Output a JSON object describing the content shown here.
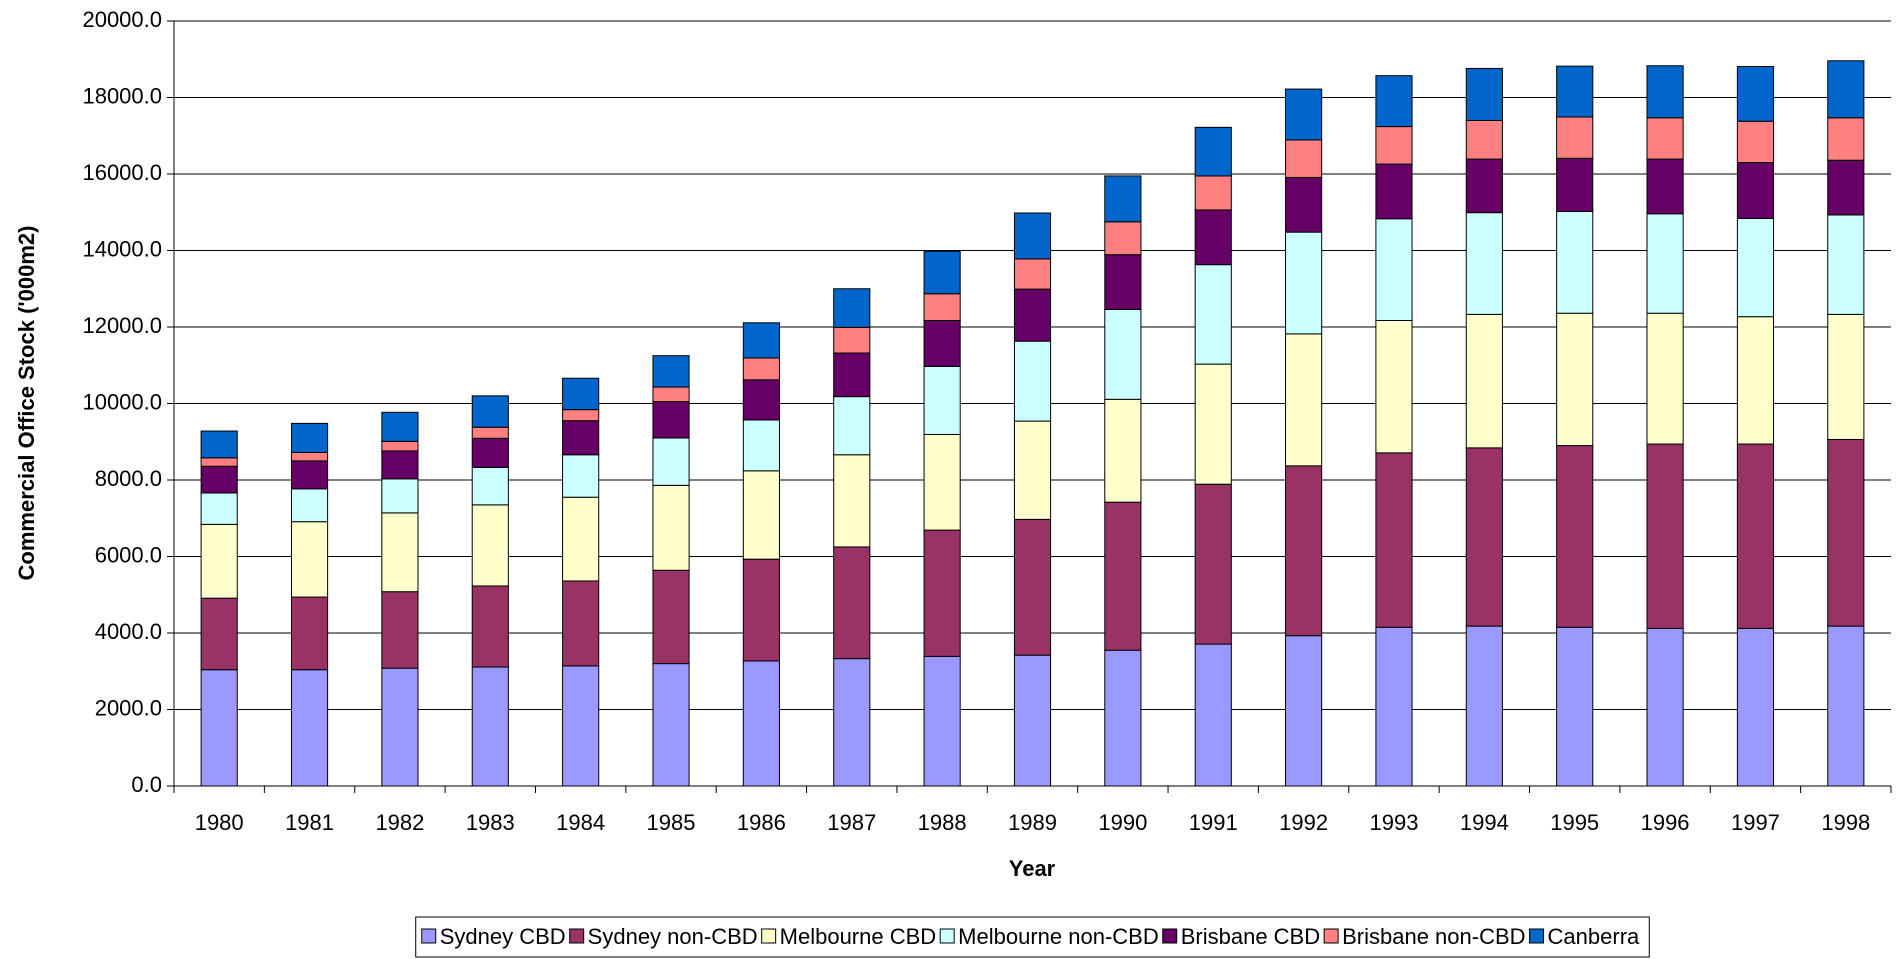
{
  "chart_data": {
    "type": "stacked_bar",
    "x_label": "Year",
    "y_label": "Commercial Office Stock ('000m2)",
    "categories": [
      "1980",
      "1981",
      "1982",
      "1983",
      "1984",
      "1985",
      "1986",
      "1987",
      "1988",
      "1989",
      "1990",
      "1991",
      "1992",
      "1993",
      "1994",
      "1995",
      "1996",
      "1997",
      "1998"
    ],
    "series": [
      {
        "name": "Sydney CBD",
        "color": "#9999ff",
        "values": [
          3040,
          3040,
          3080,
          3110,
          3140,
          3200,
          3270,
          3330,
          3390,
          3420,
          3550,
          3710,
          3930,
          4150,
          4180,
          4150,
          4120,
          4120,
          4180
        ]
      },
      {
        "name": "Sydney non-CBD",
        "color": "#993366",
        "values": [
          1870,
          1900,
          2000,
          2120,
          2220,
          2440,
          2660,
          2920,
          3300,
          3550,
          3870,
          4180,
          4440,
          4560,
          4660,
          4750,
          4820,
          4820,
          4880
        ]
      },
      {
        "name": "Melbourne CBD",
        "color": "#ffffcc",
        "values": [
          1930,
          1970,
          2060,
          2120,
          2190,
          2220,
          2310,
          2410,
          2500,
          2570,
          2690,
          3140,
          3450,
          3460,
          3490,
          3460,
          3420,
          3330,
          3270
        ]
      },
      {
        "name": "Melbourne non-CBD",
        "color": "#ccffff",
        "values": [
          820,
          860,
          890,
          980,
          1110,
          1240,
          1330,
          1520,
          1780,
          2090,
          2350,
          2600,
          2660,
          2660,
          2660,
          2660,
          2600,
          2570,
          2600
        ]
      },
      {
        "name": "Brisbane CBD",
        "color": "#660066",
        "values": [
          700,
          730,
          730,
          760,
          890,
          950,
          1050,
          1140,
          1200,
          1360,
          1430,
          1430,
          1430,
          1430,
          1400,
          1390,
          1430,
          1460,
          1430
        ]
      },
      {
        "name": "Brisbane non-CBD",
        "color": "#ff8080",
        "values": [
          220,
          220,
          250,
          290,
          290,
          380,
          570,
          670,
          700,
          790,
          860,
          890,
          980,
          980,
          1010,
          1080,
          1080,
          1080,
          1110
        ]
      },
      {
        "name": "Canberra",
        "color": "#0066cc",
        "values": [
          700,
          760,
          760,
          820,
          820,
          820,
          920,
          1010,
          1110,
          1200,
          1200,
          1270,
          1330,
          1330,
          1360,
          1330,
          1360,
          1430,
          1490
        ]
      }
    ],
    "ylim": [
      0,
      20000
    ],
    "yticks": [
      {
        "value": 0,
        "label": "0.0"
      },
      {
        "value": 2000,
        "label": "2000.0"
      },
      {
        "value": 4000,
        "label": "4000.0"
      },
      {
        "value": 6000,
        "label": "6000.0"
      },
      {
        "value": 8000,
        "label": "8000.0"
      },
      {
        "value": 10000,
        "label": "10000.0"
      },
      {
        "value": 12000,
        "label": "12000.0"
      },
      {
        "value": 14000,
        "label": "14000.0"
      },
      {
        "value": 16000,
        "label": "16000.0"
      },
      {
        "value": 18000,
        "label": "18000.0"
      },
      {
        "value": 20000,
        "label": "20000.0"
      }
    ],
    "grid": true,
    "legend": "bottom"
  }
}
